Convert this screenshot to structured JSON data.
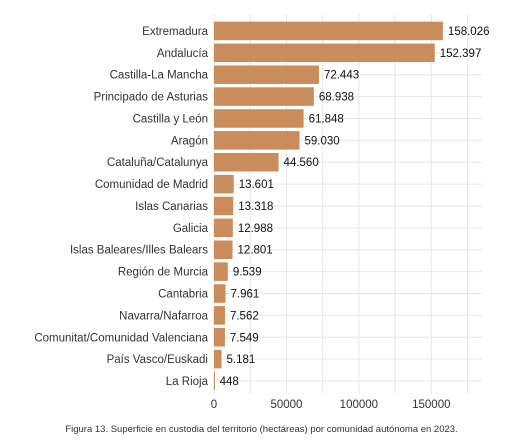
{
  "chart_data": {
    "type": "bar",
    "orientation": "horizontal",
    "categories": [
      "Extremadura",
      "Andalucía",
      "Castilla-La Mancha",
      "Principado de Asturias",
      "Castilla y León",
      "Aragón",
      "Cataluña/Catalunya",
      "Comunidad de Madrid",
      "Islas Canarias",
      "Galicia",
      "Islas Baleares/Illes Balears",
      "Región de Murcia",
      "Cantabria",
      "Navarra/Nafarroa",
      "Comunitat/Comunidad Valenciana",
      "País Vasco/Euskadi",
      "La Rioja"
    ],
    "values": [
      158026,
      152397,
      72443,
      68938,
      61848,
      59030,
      44560,
      13601,
      13318,
      12988,
      12801,
      9539,
      7961,
      7562,
      7549,
      5181,
      448
    ],
    "data_labels": [
      "158.026",
      "152.397",
      "72.443",
      "68.938",
      "61.848",
      "59.030",
      "44.560",
      "13.601",
      "13.318",
      "12.988",
      "12.801",
      "9.539",
      "7.961",
      "7.562",
      "7.549",
      "5.181",
      "448"
    ],
    "xticks": [
      0,
      50000,
      100000,
      150000
    ],
    "xtick_labels": [
      "0",
      "50000",
      "100000",
      "150000"
    ],
    "xlim": [
      0,
      185000
    ],
    "grid": true,
    "bar_color": "#c98c5a",
    "title": "",
    "xlabel": "",
    "ylabel": ""
  },
  "caption": "Figura 13. Superficie en custodia del territorio (hectáreas) por comunidad autónoma en 2023."
}
